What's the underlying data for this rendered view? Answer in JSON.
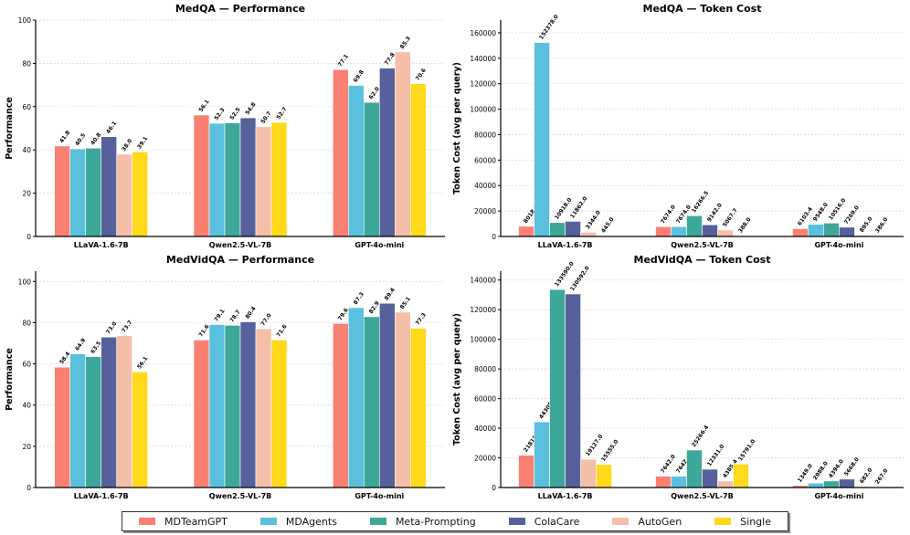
{
  "series_names": [
    "MDTeamGPT",
    "MDAgents",
    "Meta-Prompting",
    "ColaCare",
    "AutoGen",
    "Single"
  ],
  "colors": [
    "#FA8072",
    "#5BC0DE",
    "#3DA89A",
    "#56609A",
    "#F5BEA8",
    "#FFD91A"
  ],
  "chart_data": [
    {
      "type": "bar",
      "title": "MedQA — Performance",
      "ylabel": "Performance",
      "categories": [
        "LLaVA-1.6-7B",
        "Qwen2.5-VL-7B",
        "GPT-4o-mini"
      ],
      "ylim": [
        0,
        100
      ],
      "yticks": [
        0,
        20,
        40,
        60,
        80,
        100
      ],
      "grid": true,
      "series": [
        {
          "name": "MDTeamGPT",
          "values": [
            41.8,
            56.1,
            77.1
          ],
          "labels": [
            "41.8",
            "56.1",
            "77.1"
          ]
        },
        {
          "name": "MDAgents",
          "values": [
            40.5,
            52.3,
            69.8
          ],
          "labels": [
            "40.5",
            "52.3",
            "69.8"
          ]
        },
        {
          "name": "Meta-Prompting",
          "values": [
            40.8,
            52.5,
            62.0
          ],
          "labels": [
            "40.8",
            "52.5",
            "62.0"
          ]
        },
        {
          "name": "ColaCare",
          "values": [
            46.1,
            54.8,
            77.8
          ],
          "labels": [
            "46.1",
            "54.8",
            "77.8"
          ]
        },
        {
          "name": "AutoGen",
          "values": [
            38.0,
            50.7,
            85.3
          ],
          "labels": [
            "38.0",
            "50.7",
            "85.3"
          ]
        },
        {
          "name": "Single",
          "values": [
            39.1,
            52.7,
            70.6
          ],
          "labels": [
            "39.1",
            "52.7",
            "70.6"
          ]
        }
      ]
    },
    {
      "type": "bar",
      "title": "MedQA — Token Cost",
      "ylabel": "Token Cost (avg per query)",
      "categories": [
        "LLaVA-1.6-7B",
        "Qwen2.5-VL-7B",
        "GPT-4o-mini"
      ],
      "ylim": [
        0,
        170000
      ],
      "yticks": [
        0,
        20000,
        40000,
        60000,
        80000,
        100000,
        120000,
        140000,
        160000
      ],
      "grid": true,
      "series": [
        {
          "name": "MDTeamGPT",
          "values": [
            8018.0,
            7674.0,
            6103.4
          ],
          "labels": [
            "8018.0",
            "7674.0",
            "6103.4"
          ]
        },
        {
          "name": "MDAgents",
          "values": [
            152378.0,
            7674.0,
            9548.0
          ],
          "labels": [
            "152378.0",
            "7674.0",
            "9548.0"
          ]
        },
        {
          "name": "Meta-Prompting",
          "values": [
            10918.0,
            16266.5,
            10516.0
          ],
          "labels": [
            "10918.0",
            "16266.5",
            "10516.0"
          ]
        },
        {
          "name": "ColaCare",
          "values": [
            11862.0,
            9142.0,
            7269.0
          ],
          "labels": [
            "11862.0",
            "9142.0",
            "7269.0"
          ]
        },
        {
          "name": "AutoGen",
          "values": [
            3344.0,
            5067.7,
            895.0
          ],
          "labels": [
            "3344.0",
            "5067.7",
            "895.0"
          ]
        },
        {
          "name": "Single",
          "values": [
            445.0,
            388.0,
            386.0
          ],
          "labels": [
            "445.0",
            "388.0",
            "386.0"
          ]
        }
      ]
    },
    {
      "type": "bar",
      "title": "MedVidQA — Performance",
      "ylabel": "Performance",
      "categories": [
        "LLaVA-1.6-7B",
        "Qwen2.5-VL-7B",
        "GPT-4o-mini"
      ],
      "ylim": [
        0,
        105
      ],
      "yticks": [
        0,
        20,
        40,
        60,
        80,
        100
      ],
      "grid": true,
      "series": [
        {
          "name": "MDTeamGPT",
          "values": [
            58.4,
            71.6,
            79.6
          ],
          "labels": [
            "58.4",
            "71.6",
            "79.6"
          ]
        },
        {
          "name": "MDAgents",
          "values": [
            64.9,
            79.1,
            87.3
          ],
          "labels": [
            "64.9",
            "79.1",
            "87.3"
          ]
        },
        {
          "name": "Meta-Prompting",
          "values": [
            63.5,
            78.7,
            82.9
          ],
          "labels": [
            "63.5",
            "78.7",
            "82.9"
          ]
        },
        {
          "name": "ColaCare",
          "values": [
            73.0,
            80.4,
            89.4
          ],
          "labels": [
            "73.0",
            "80.4",
            "89.4"
          ]
        },
        {
          "name": "AutoGen",
          "values": [
            73.7,
            77.0,
            85.1
          ],
          "labels": [
            "73.7",
            "77.0",
            "85.1"
          ]
        },
        {
          "name": "Single",
          "values": [
            56.1,
            71.6,
            77.3
          ],
          "labels": [
            "56.1",
            "71.6",
            "77.3"
          ]
        }
      ]
    },
    {
      "type": "bar",
      "title": "MedVidQA — Token Cost",
      "ylabel": "Token Cost (avg per query)",
      "categories": [
        "LLaVA-1.6-7B",
        "Qwen2.5-VL-7B",
        "GPT-4o-mini"
      ],
      "ylim": [
        0,
        146000
      ],
      "yticks": [
        0,
        20000,
        40000,
        60000,
        80000,
        100000,
        120000,
        140000
      ],
      "grid": true,
      "series": [
        {
          "name": "MDTeamGPT",
          "values": [
            21818.0,
            7642.0,
            1349.0
          ],
          "labels": [
            "21818.0",
            "7642.0",
            "1349.0"
          ]
        },
        {
          "name": "MDAgents",
          "values": [
            44305.0,
            7642.0,
            2988.0
          ],
          "labels": [
            "44305.0",
            "7642.0",
            "2988.0"
          ]
        },
        {
          "name": "Meta-Prompting",
          "values": [
            133590.0,
            25266.4,
            4394.0
          ],
          "labels": [
            "133590.0",
            "25266.4",
            "4394.0"
          ]
        },
        {
          "name": "ColaCare",
          "values": [
            130592.0,
            12331.0,
            5668.0
          ],
          "labels": [
            "130592.0",
            "12331.0",
            "5668.0"
          ]
        },
        {
          "name": "AutoGen",
          "values": [
            19127.0,
            4385.4,
            682.0
          ],
          "labels": [
            "19127.0",
            "4385.4",
            "682.0"
          ]
        },
        {
          "name": "Single",
          "values": [
            15555.0,
            15791.0,
            267.0
          ],
          "labels": [
            "15555.0",
            "15791.0",
            "267.0"
          ]
        }
      ]
    }
  ]
}
